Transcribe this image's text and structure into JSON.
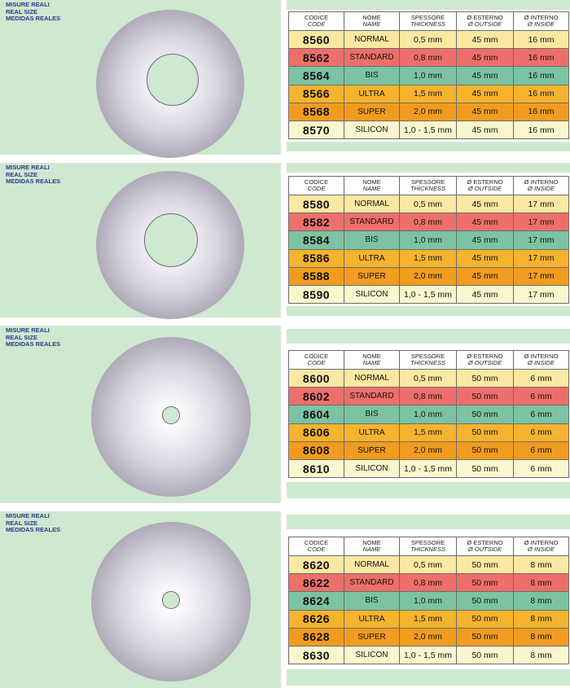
{
  "size_label": [
    "MISURE REALI",
    "REAL SIZE",
    "MEDIDAS REALES"
  ],
  "headers": [
    {
      "main": "CODICE",
      "sub": "CODE"
    },
    {
      "main": "NOME",
      "sub": "NAME"
    },
    {
      "main": "SPESSORE",
      "sub": "THICKNESS"
    },
    {
      "main": "Ø ESTERNO",
      "sub": "Ø OUTSIDE"
    },
    {
      "main": "Ø INTERNO",
      "sub": "Ø INSIDE"
    }
  ],
  "row_colors": [
    "#fbe8a2",
    "#ee6f6a",
    "#7cc3a3",
    "#f6b32d",
    "#f29c1f",
    "#fbf6cd"
  ],
  "panels": [
    {
      "rows": [
        {
          "code": "8560",
          "name": "NORMAL",
          "thickness": "0,5 mm",
          "outside": "45 mm",
          "inside": "16 mm"
        },
        {
          "code": "8562",
          "name": "STANDARD",
          "thickness": "0,8 mm",
          "outside": "45 mm",
          "inside": "16 mm"
        },
        {
          "code": "8564",
          "name": "BIS",
          "thickness": "1,0 mm",
          "outside": "45 mm",
          "inside": "16 mm"
        },
        {
          "code": "8566",
          "name": "ULTRA",
          "thickness": "1,5 mm",
          "outside": "45 mm",
          "inside": "16 mm"
        },
        {
          "code": "8568",
          "name": "SUPER",
          "thickness": "2,0 mm",
          "outside": "45 mm",
          "inside": "16 mm"
        },
        {
          "code": "8570",
          "name": "SILICON",
          "thickness": "1,0 - 1,5 mm",
          "outside": "45 mm",
          "inside": "16 mm"
        }
      ]
    },
    {
      "rows": [
        {
          "code": "8580",
          "name": "NORMAL",
          "thickness": "0,5 mm",
          "outside": "45 mm",
          "inside": "17 mm"
        },
        {
          "code": "8582",
          "name": "STANDARD",
          "thickness": "0,8 mm",
          "outside": "45 mm",
          "inside": "17 mm"
        },
        {
          "code": "8584",
          "name": "BIS",
          "thickness": "1,0 mm",
          "outside": "45 mm",
          "inside": "17 mm"
        },
        {
          "code": "8586",
          "name": "ULTRA",
          "thickness": "1,5 mm",
          "outside": "45 mm",
          "inside": "17 mm"
        },
        {
          "code": "8588",
          "name": "SUPER",
          "thickness": "2,0 mm",
          "outside": "45 mm",
          "inside": "17 mm"
        },
        {
          "code": "8590",
          "name": "SILICON",
          "thickness": "1,0 - 1,5 mm",
          "outside": "45 mm",
          "inside": "17 mm"
        }
      ]
    },
    {
      "rows": [
        {
          "code": "8600",
          "name": "NORMAL",
          "thickness": "0,5 mm",
          "outside": "50 mm",
          "inside": "6 mm"
        },
        {
          "code": "8602",
          "name": "STANDARD",
          "thickness": "0,8 mm",
          "outside": "50 mm",
          "inside": "6 mm"
        },
        {
          "code": "8604",
          "name": "BIS",
          "thickness": "1,0 mm",
          "outside": "50 mm",
          "inside": "6 mm"
        },
        {
          "code": "8606",
          "name": "ULTRA",
          "thickness": "1,5 mm",
          "outside": "50 mm",
          "inside": "6 mm"
        },
        {
          "code": "8608",
          "name": "SUPER",
          "thickness": "2,0 mm",
          "outside": "50 mm",
          "inside": "6 mm"
        },
        {
          "code": "8610",
          "name": "SILICON",
          "thickness": "1,0 - 1,5 mm",
          "outside": "50 mm",
          "inside": "6 mm"
        }
      ]
    },
    {
      "rows": [
        {
          "code": "8620",
          "name": "NORMAL",
          "thickness": "0,5 mm",
          "outside": "50 mm",
          "inside": "8 mm"
        },
        {
          "code": "8622",
          "name": "STANDARD",
          "thickness": "0,8 mm",
          "outside": "50 mm",
          "inside": "8 mm"
        },
        {
          "code": "8624",
          "name": "BIS",
          "thickness": "1,0 mm",
          "outside": "50 mm",
          "inside": "8 mm"
        },
        {
          "code": "8626",
          "name": "ULTRA",
          "thickness": "1,5 mm",
          "outside": "50 mm",
          "inside": "8 mm"
        },
        {
          "code": "8628",
          "name": "SUPER",
          "thickness": "2,0 mm",
          "outside": "50 mm",
          "inside": "8 mm"
        },
        {
          "code": "8630",
          "name": "SILICON",
          "thickness": "1,0 - 1,5 mm",
          "outside": "50 mm",
          "inside": "8 mm"
        }
      ]
    }
  ]
}
